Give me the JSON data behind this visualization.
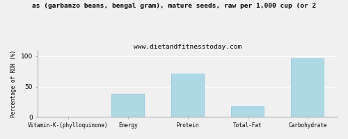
{
  "title_line1": "as (garbanzo beans, bengal gram), mature seeds, raw per 1,000 cup (or 2",
  "title_line2": "www.dietandfitnesstoday.com",
  "ylabel": "Percentage of RDH (%)",
  "categories": [
    "Vitamin-K-(phylloquinone)",
    "Energy",
    "Protein",
    "Total-Fat",
    "Carbohydrate"
  ],
  "values": [
    0,
    38,
    71,
    18,
    96
  ],
  "bar_color": "#add8e6",
  "bar_edge_color": "#8ec8e0",
  "ylim": [
    0,
    110
  ],
  "yticks": [
    0,
    50,
    100
  ],
  "background_color": "#f0f0f0",
  "title_fontsize": 6.8,
  "subtitle_fontsize": 6.8,
  "ylabel_fontsize": 5.5,
  "xtick_fontsize": 5.5,
  "ytick_fontsize": 6.5
}
